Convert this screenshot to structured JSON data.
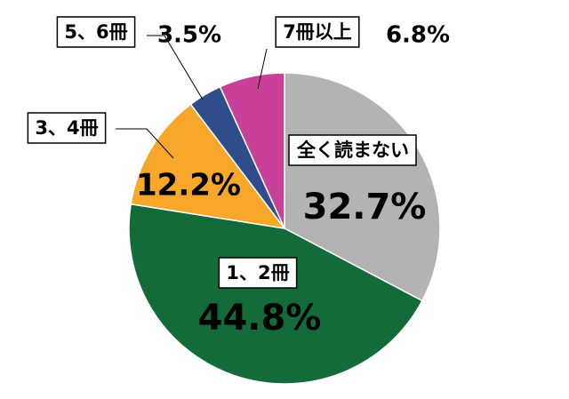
{
  "chart_data": {
    "type": "pie",
    "categories": [
      "全く読まない",
      "1、2冊",
      "3、4冊",
      "5、6冊",
      "7冊以上"
    ],
    "values": [
      32.7,
      44.8,
      12.2,
      3.5,
      6.8
    ],
    "value_labels": [
      "32.7%",
      "44.8%",
      "12.2%",
      "3.5%",
      "6.8%"
    ],
    "colors": [
      "#b3b3b3",
      "#146b3a",
      "#f7a72a",
      "#2e4d8a",
      "#c9409b"
    ]
  }
}
